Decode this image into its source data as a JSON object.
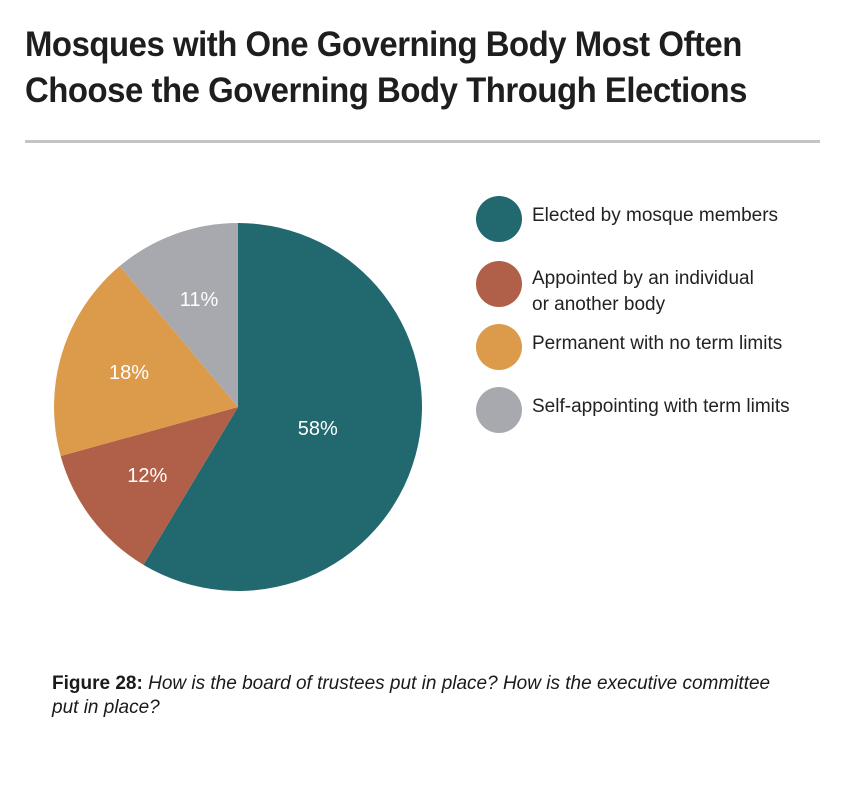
{
  "title_lines": [
    "Mosques with One Governing Body Most Often",
    "Choose the Governing Body Through Elections"
  ],
  "caption": {
    "figure_label": "Figure 28:",
    "question": "How is the board of trustees put in place? How is the executive committee put in place?"
  },
  "chart_data": {
    "type": "pie",
    "title": "Mosques with One Governing Body Most Often Choose the Governing Body Through Elections",
    "slices": [
      {
        "label": "Elected by mosque members",
        "value": 58,
        "display": "58%",
        "color": "#22686f"
      },
      {
        "label": "Appointed by an individual or another body",
        "value": 12,
        "display": "12%",
        "color": "#b05f48"
      },
      {
        "label": "Permanent with no term limits",
        "value": 18,
        "display": "18%",
        "color": "#dc9a4b"
      },
      {
        "label": "Self-appointing with term limits",
        "value": 11,
        "display": "11%",
        "color": "#a7a9ae"
      }
    ],
    "legend": {
      "position": "right",
      "items": [
        {
          "lines": [
            "Elected by mosque members"
          ],
          "color": "#22686f"
        },
        {
          "lines": [
            "Appointed by an individual",
            "or another body"
          ],
          "color": "#b05f48"
        },
        {
          "lines": [
            "Permanent with no term limits"
          ],
          "color": "#dc9a4b"
        },
        {
          "lines": [
            "Self-appointing with term limits"
          ],
          "color": "#a7a9ae"
        }
      ]
    }
  }
}
